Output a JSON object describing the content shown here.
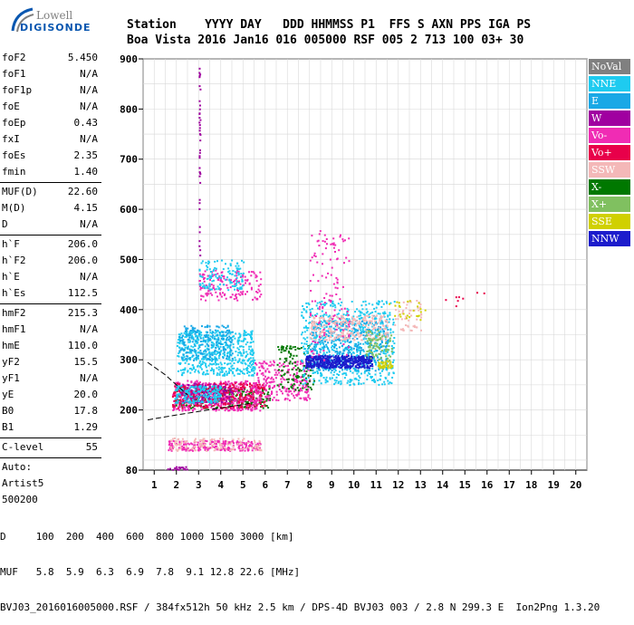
{
  "logo": {
    "line1": "Lowell",
    "line2": "DIGISONDE"
  },
  "header": {
    "row1": "Station    YYYY DAY   DDD HHMMSS P1  FFS S AXN PPS IGA PS",
    "row2": "Boa Vista 2016 Jan16 016 005000 RSF 005 2 713 100 03+ 30"
  },
  "params": [
    {
      "k": "foF2",
      "v": "5.450"
    },
    {
      "k": "foF1",
      "v": "N/A"
    },
    {
      "k": "foF1p",
      "v": "N/A"
    },
    {
      "k": "foE",
      "v": "N/A"
    },
    {
      "k": "foEp",
      "v": "0.43"
    },
    {
      "k": "fxI",
      "v": "N/A"
    },
    {
      "k": "foEs",
      "v": "2.35"
    },
    {
      "k": "fmin",
      "v": "1.40"
    },
    {
      "sep": true
    },
    {
      "k": "MUF(D)",
      "v": "22.60"
    },
    {
      "k": "M(D)",
      "v": "4.15"
    },
    {
      "k": "D",
      "v": "N/A"
    },
    {
      "sep": true
    },
    {
      "k": "h`F",
      "v": "206.0"
    },
    {
      "k": "h`F2",
      "v": "206.0"
    },
    {
      "k": "h`E",
      "v": "N/A"
    },
    {
      "k": "h`Es",
      "v": "112.5"
    },
    {
      "sep": true
    },
    {
      "k": "hmF2",
      "v": "215.3"
    },
    {
      "k": "hmF1",
      "v": "N/A"
    },
    {
      "k": "hmE",
      "v": "110.0"
    },
    {
      "k": "yF2",
      "v": "15.5"
    },
    {
      "k": "yF1",
      "v": "N/A"
    },
    {
      "k": "yE",
      "v": "20.0"
    },
    {
      "k": "B0",
      "v": "17.8"
    },
    {
      "k": "B1",
      "v": "1.29"
    },
    {
      "sep": true
    },
    {
      "k": "C-level",
      "v": "55"
    },
    {
      "sep": true
    },
    {
      "k": "Auto:",
      "v": ""
    },
    {
      "k": "Artist5",
      "v": ""
    },
    {
      "k": "500200",
      "v": ""
    }
  ],
  "footer": {
    "line1": "D     100  200  400  600  800 1000 1500 3000 [km]",
    "line2": "MUF   5.8  5.9  6.3  6.9  7.8  9.1 12.8 22.6 [MHz]",
    "line3": "BVJ03_2016016005000.RSF / 384fx512h 50 kHz 2.5 km / DPS-4D BVJ03 003 / 2.8 N 299.3 E  Ion2Png 1.3.20"
  },
  "legend": [
    {
      "label": "NoVal",
      "color": "#808080"
    },
    {
      "label": "NNE",
      "color": "#1ecbf0"
    },
    {
      "label": "E",
      "color": "#19a8e6"
    },
    {
      "label": "W",
      "color": "#a000a0"
    },
    {
      "label": "Vo-",
      "color": "#f02cb4"
    },
    {
      "label": "Vo+",
      "color": "#e8004a"
    },
    {
      "label": "SSW",
      "color": "#f4b8b8"
    },
    {
      "label": "X-",
      "color": "#007800"
    },
    {
      "label": "X+",
      "color": "#80c060"
    },
    {
      "label": "SSE",
      "color": "#d0d000"
    },
    {
      "label": "NNW",
      "color": "#1c1ccc"
    }
  ],
  "chart_data": {
    "type": "scatter",
    "title": "",
    "xlabel": "",
    "ylabel": "",
    "xlim": [
      0.5,
      20.5
    ],
    "ylim": [
      80,
      900
    ],
    "xticks": [
      1,
      2,
      3,
      4,
      5,
      6,
      7,
      8,
      9,
      10,
      11,
      12,
      13,
      14,
      15,
      16,
      17,
      18,
      19,
      20
    ],
    "yticks": [
      100,
      200,
      300,
      400,
      500,
      600,
      700,
      800,
      900
    ],
    "yticks_labeled": [
      80,
      200,
      300,
      400,
      500,
      600,
      700,
      800,
      900
    ],
    "grid": true,
    "legend_position": "right",
    "clusters": [
      {
        "name": "X-",
        "x": [
          1.9,
          6.2
        ],
        "y": [
          205,
          245
        ],
        "n": 300
      },
      {
        "name": "Vo-",
        "x": [
          1.8,
          5.8
        ],
        "y": [
          200,
          260
        ],
        "n": 500
      },
      {
        "name": "Vo+",
        "x": [
          1.8,
          6.0
        ],
        "y": [
          205,
          255
        ],
        "n": 300
      },
      {
        "name": "NNE",
        "x": [
          2.0,
          5.5
        ],
        "y": [
          270,
          360
        ],
        "n": 550
      },
      {
        "name": "E",
        "x": [
          2.1,
          4.5
        ],
        "y": [
          300,
          370
        ],
        "n": 200
      },
      {
        "name": "Vo-",
        "x": [
          3.0,
          5.8
        ],
        "y": [
          420,
          480
        ],
        "n": 160
      },
      {
        "name": "NNE",
        "x": [
          3.0,
          5.0
        ],
        "y": [
          440,
          500
        ],
        "n": 120
      },
      {
        "name": "W",
        "x": [
          2.2,
          4.5
        ],
        "y": [
          215,
          255
        ],
        "n": 150
      },
      {
        "name": "NNE",
        "x": [
          1.9,
          4.0
        ],
        "y": [
          215,
          250
        ],
        "n": 180
      },
      {
        "name": "Vo-",
        "x": [
          1.6,
          5.8
        ],
        "y": [
          120,
          140
        ],
        "n": 220
      },
      {
        "name": "SSW",
        "x": [
          1.7,
          5.8
        ],
        "y": [
          120,
          145
        ],
        "n": 120
      },
      {
        "name": "Vo-",
        "x": [
          5.5,
          8.0
        ],
        "y": [
          220,
          300
        ],
        "n": 250
      },
      {
        "name": "X-",
        "x": [
          6.5,
          8.2
        ],
        "y": [
          240,
          330
        ],
        "n": 120
      },
      {
        "name": "NNE",
        "x": [
          7.6,
          11.8
        ],
        "y": [
          250,
          420
        ],
        "n": 700
      },
      {
        "name": "E",
        "x": [
          8.0,
          11.5
        ],
        "y": [
          280,
          380
        ],
        "n": 350
      },
      {
        "name": "SSW",
        "x": [
          8.0,
          11.5
        ],
        "y": [
          340,
          390
        ],
        "n": 260
      },
      {
        "name": "NNW",
        "x": [
          7.8,
          10.8
        ],
        "y": [
          285,
          310
        ],
        "n": 450
      },
      {
        "name": "X+",
        "x": [
          10.5,
          11.7
        ],
        "y": [
          300,
          360
        ],
        "n": 80
      },
      {
        "name": "SSE",
        "x": [
          11.0,
          11.7
        ],
        "y": [
          285,
          300
        ],
        "n": 40
      },
      {
        "name": "Vo-",
        "x": [
          8.0,
          9.8
        ],
        "y": [
          300,
          560
        ],
        "n": 120
      },
      {
        "name": "SSW",
        "x": [
          11.8,
          13.0
        ],
        "y": [
          360,
          420
        ],
        "n": 50
      },
      {
        "name": "SSE",
        "x": [
          11.5,
          13.2
        ],
        "y": [
          380,
          420
        ],
        "n": 25
      },
      {
        "name": "Vo+",
        "x": [
          14.0,
          16.0
        ],
        "y": [
          400,
          440
        ],
        "n": 8
      },
      {
        "name": "W",
        "x": [
          1.5,
          2.5
        ],
        "y": [
          82,
          88
        ],
        "n": 20
      },
      {
        "name": "W",
        "x": [
          3.0,
          3.05
        ],
        "y": [
          500,
          900
        ],
        "n": 40
      }
    ],
    "trace": [
      [
        5.3,
        213
      ],
      [
        2.0,
        190
      ],
      [
        0.7,
        180
      ]
    ],
    "trace_upper": [
      [
        0.7,
        295
      ],
      [
        1.5,
        270
      ],
      [
        2.5,
        230
      ]
    ]
  }
}
